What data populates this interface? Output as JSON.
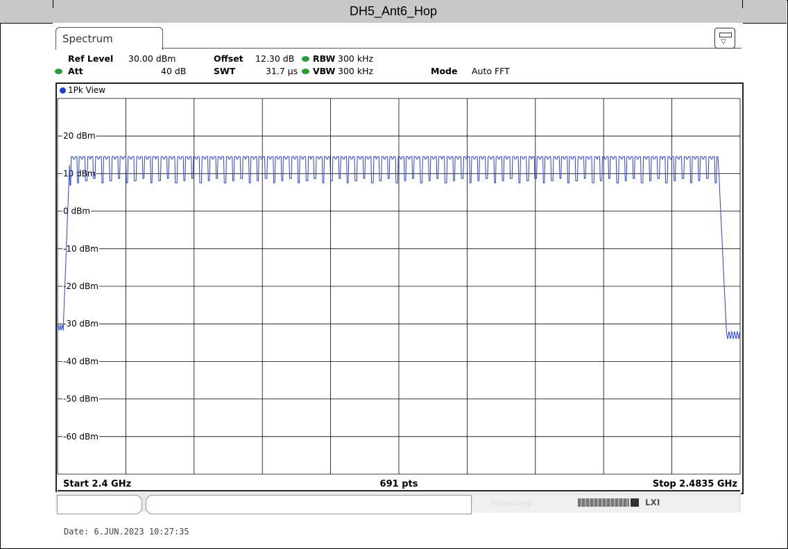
{
  "window_title": "DH5_Ant6_Hop",
  "tab_label": "Spectrum",
  "settings": {
    "ref_level_label": "Ref Level",
    "ref_level_value": "30.00 dBm",
    "offset_label": "Offset",
    "offset_value": "12.30 dB",
    "rbw_label": "RBW",
    "rbw_value": "300 kHz",
    "att_label": "Att",
    "att_value": "40 dB",
    "swt_label": "SWT",
    "swt_value": "31.7 µs",
    "vbw_label": "VBW",
    "vbw_value": "300 kHz",
    "mode_label": "Mode",
    "mode_value": "Auto FFT"
  },
  "trace_label": "1Pk View",
  "footer": {
    "start": "Start 2.4 GHz",
    "points": "691 pts",
    "stop": "Stop 2.4835 GHz"
  },
  "status": {
    "measuring": "Measuring..."
  },
  "date_line": "Date: 6.JUN.2023  10:27:35",
  "colors": {
    "trace": "#2a3fd6",
    "grid": "#000000",
    "status_dot": "#2a9d3a",
    "title_bar": "#c8c8c8"
  },
  "chart_data": {
    "type": "line",
    "title": "",
    "xlabel": "",
    "ylabel": "",
    "x_unit": "GHz",
    "xlim": [
      2.4,
      2.4835
    ],
    "ylim": [
      -70,
      30
    ],
    "y_ticks": [
      20,
      10,
      0,
      -10,
      -20,
      -30,
      -40,
      -50,
      -60
    ],
    "y_tick_labels": [
      "20 dBm",
      "10 dBm",
      "0 dBm",
      "-10 dBm",
      "-20 dBm",
      "-30 dBm",
      "-40 dBm",
      "-50 dBm",
      "-60 dBm"
    ],
    "grid": true,
    "x_divisions": 10,
    "y_divisions": 10,
    "series": [
      {
        "hop_channels": 79,
        "channel_start_ghz": 2.402,
        "channel_spacing_mhz": 1,
        "peak_dbm": 14.5,
        "dip_dbm": 7.5,
        "floor_dbm": -31,
        "band_edge_low_ghz": 2.4015,
        "band_edge_high_ghz": 2.4808
      }
    ]
  }
}
